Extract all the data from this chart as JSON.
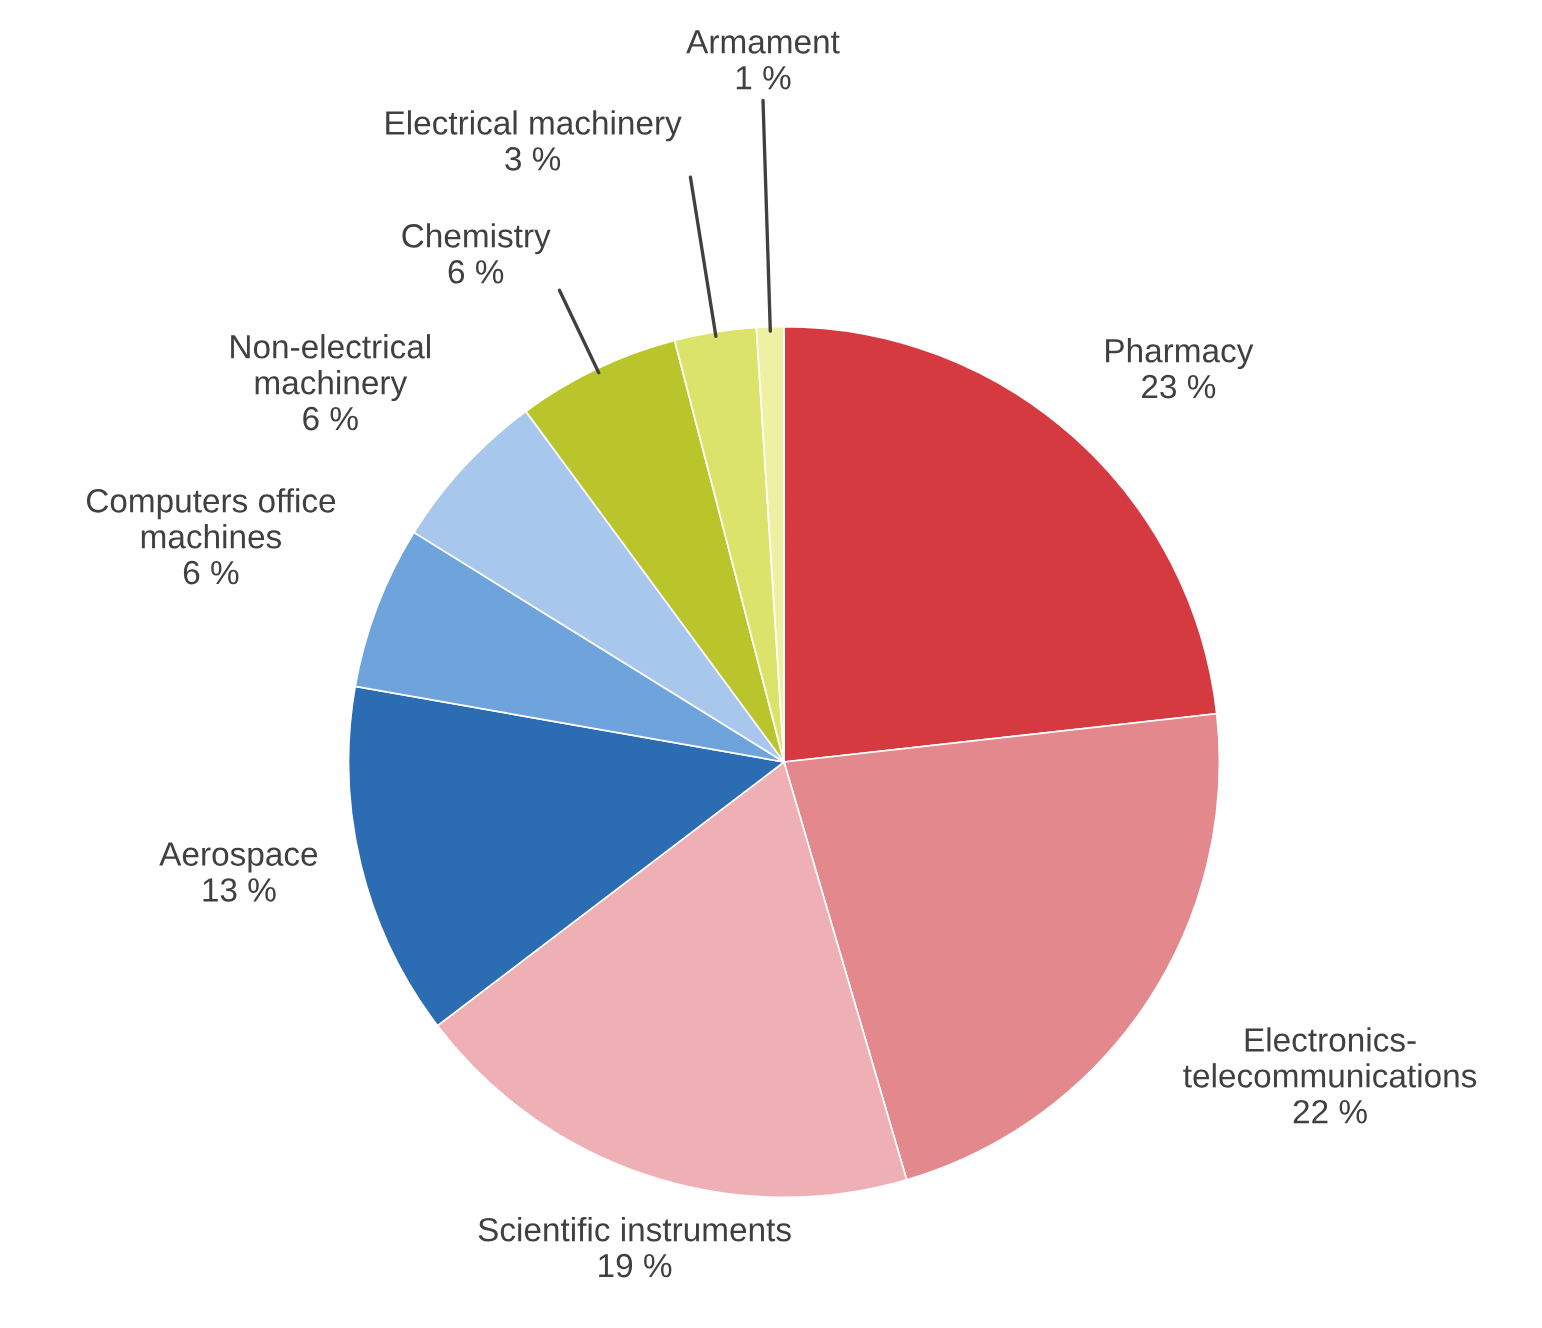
{
  "chart_data": {
    "type": "pie",
    "categories": [
      "Pharmacy",
      "Electronics-\ntelecommunications",
      "Scientific instruments",
      "Aerospace",
      "Computers office\nmachines",
      "Non-electrical\nmachinery",
      "Chemistry",
      "Electrical machinery",
      "Armament"
    ],
    "values": [
      23,
      22,
      19,
      13,
      6,
      6,
      6,
      3,
      1
    ],
    "value_labels": [
      "23 %",
      "22 %",
      "19 %",
      "13 %",
      "6 %",
      "6 %",
      "6 %",
      "3 %",
      "1 %"
    ],
    "colors": [
      "#d63a41",
      "#e3898d",
      "#eeb0b4",
      "#2b6cb3",
      "#6ea3dc",
      "#a7c8ec",
      "#b9c52b",
      "#dce36b",
      "#eef1a3"
    ]
  }
}
